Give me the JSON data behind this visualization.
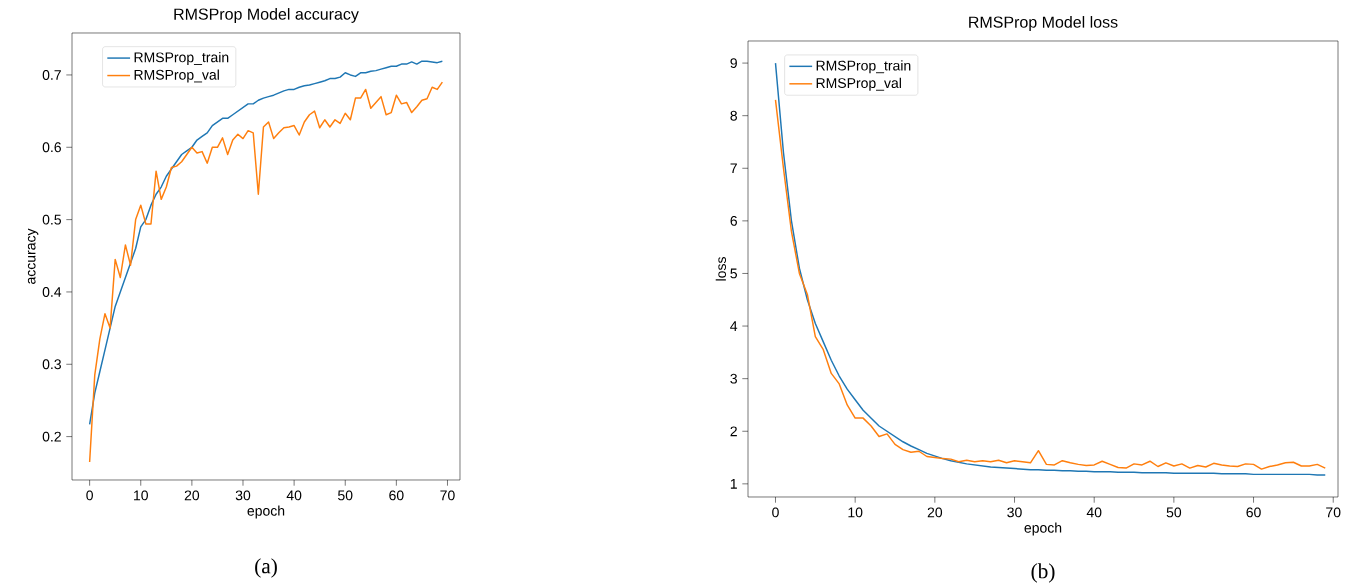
{
  "chart_data": [
    {
      "type": "line",
      "title": "RMSProp Model accuracy",
      "xlabel": "epoch",
      "ylabel": "accuracy",
      "annotations": [
        "(a)"
      ],
      "x": [
        0,
        1,
        2,
        3,
        4,
        5,
        6,
        7,
        8,
        9,
        10,
        11,
        12,
        13,
        14,
        15,
        16,
        17,
        18,
        19,
        20,
        21,
        22,
        23,
        24,
        25,
        26,
        27,
        28,
        29,
        30,
        31,
        32,
        33,
        34,
        35,
        36,
        37,
        38,
        39,
        40,
        41,
        42,
        43,
        44,
        45,
        46,
        47,
        48,
        49,
        50,
        51,
        52,
        53,
        54,
        55,
        56,
        57,
        58,
        59,
        60,
        61,
        62,
        63,
        64,
        65,
        66,
        67,
        68,
        69
      ],
      "xlim": [
        -3.45,
        72.45
      ],
      "ylim": [
        0.14,
        0.758
      ],
      "xticks": [
        0,
        10,
        20,
        30,
        40,
        50,
        60,
        70
      ],
      "yticks": [
        0.2,
        0.3,
        0.4,
        0.5,
        0.6,
        0.7
      ],
      "legend": "top left",
      "grid": false,
      "series": [
        {
          "name": "RMSProp_train",
          "color": "#1f77b4",
          "values": [
            0.217,
            0.26,
            0.29,
            0.32,
            0.35,
            0.38,
            0.4,
            0.42,
            0.44,
            0.46,
            0.49,
            0.5,
            0.52,
            0.535,
            0.545,
            0.56,
            0.57,
            0.58,
            0.59,
            0.595,
            0.6,
            0.61,
            0.615,
            0.62,
            0.63,
            0.635,
            0.64,
            0.64,
            0.645,
            0.65,
            0.655,
            0.66,
            0.66,
            0.665,
            0.668,
            0.67,
            0.672,
            0.675,
            0.678,
            0.68,
            0.68,
            0.683,
            0.685,
            0.686,
            0.688,
            0.69,
            0.692,
            0.695,
            0.695,
            0.697,
            0.703,
            0.7,
            0.698,
            0.703,
            0.703,
            0.705,
            0.706,
            0.708,
            0.71,
            0.712,
            0.712,
            0.715,
            0.715,
            0.718,
            0.715,
            0.719,
            0.719,
            0.718,
            0.717,
            0.719
          ]
        },
        {
          "name": "RMSProp_val",
          "color": "#ff7f0e",
          "values": [
            0.165,
            0.285,
            0.335,
            0.37,
            0.35,
            0.445,
            0.42,
            0.465,
            0.437,
            0.5,
            0.52,
            0.494,
            0.494,
            0.567,
            0.528,
            0.545,
            0.572,
            0.574,
            0.58,
            0.59,
            0.6,
            0.592,
            0.594,
            0.578,
            0.6,
            0.6,
            0.613,
            0.59,
            0.61,
            0.618,
            0.612,
            0.623,
            0.62,
            0.535,
            0.628,
            0.635,
            0.612,
            0.62,
            0.627,
            0.628,
            0.63,
            0.617,
            0.635,
            0.645,
            0.65,
            0.627,
            0.638,
            0.628,
            0.638,
            0.633,
            0.647,
            0.638,
            0.668,
            0.668,
            0.68,
            0.654,
            0.662,
            0.67,
            0.645,
            0.648,
            0.672,
            0.66,
            0.662,
            0.648,
            0.656,
            0.665,
            0.667,
            0.683,
            0.68,
            0.69
          ]
        }
      ]
    },
    {
      "type": "line",
      "title": "RMSProp Model loss",
      "xlabel": "epoch",
      "ylabel": "loss",
      "annotations": [
        "(b)"
      ],
      "x": [
        0,
        1,
        2,
        3,
        4,
        5,
        6,
        7,
        8,
        9,
        10,
        11,
        12,
        13,
        14,
        15,
        16,
        17,
        18,
        19,
        20,
        21,
        22,
        23,
        24,
        25,
        26,
        27,
        28,
        29,
        30,
        31,
        32,
        33,
        34,
        35,
        36,
        37,
        38,
        39,
        40,
        41,
        42,
        43,
        44,
        45,
        46,
        47,
        48,
        49,
        50,
        51,
        52,
        53,
        54,
        55,
        56,
        57,
        58,
        59,
        60,
        61,
        62,
        63,
        64,
        65,
        66,
        67,
        68,
        69
      ],
      "xlim": [
        -3.45,
        70.6
      ],
      "ylim": [
        0.75,
        9.42
      ],
      "xticks": [
        0,
        10,
        20,
        30,
        40,
        50,
        60,
        70
      ],
      "yticks": [
        1,
        2,
        3,
        4,
        5,
        6,
        7,
        8,
        9
      ],
      "legend": "top left",
      "grid": false,
      "series": [
        {
          "name": "RMSProp_train",
          "color": "#1f77b4",
          "values": [
            9.0,
            7.3,
            6.0,
            5.1,
            4.5,
            4.05,
            3.7,
            3.35,
            3.05,
            2.8,
            2.6,
            2.4,
            2.25,
            2.1,
            2.0,
            1.9,
            1.8,
            1.72,
            1.65,
            1.58,
            1.53,
            1.48,
            1.44,
            1.41,
            1.38,
            1.36,
            1.34,
            1.32,
            1.31,
            1.3,
            1.29,
            1.28,
            1.27,
            1.27,
            1.26,
            1.26,
            1.25,
            1.25,
            1.24,
            1.24,
            1.23,
            1.23,
            1.23,
            1.22,
            1.22,
            1.22,
            1.21,
            1.21,
            1.21,
            1.21,
            1.2,
            1.2,
            1.2,
            1.2,
            1.2,
            1.2,
            1.19,
            1.19,
            1.19,
            1.19,
            1.18,
            1.18,
            1.18,
            1.18,
            1.18,
            1.18,
            1.18,
            1.18,
            1.17,
            1.17
          ]
        },
        {
          "name": "RMSProp_val",
          "color": "#ff7f0e",
          "values": [
            8.3,
            7.0,
            5.8,
            5.0,
            4.6,
            3.8,
            3.55,
            3.1,
            2.9,
            2.5,
            2.25,
            2.25,
            2.1,
            1.9,
            1.95,
            1.75,
            1.65,
            1.6,
            1.62,
            1.52,
            1.5,
            1.48,
            1.47,
            1.42,
            1.45,
            1.42,
            1.44,
            1.42,
            1.45,
            1.4,
            1.44,
            1.42,
            1.4,
            1.63,
            1.37,
            1.36,
            1.44,
            1.4,
            1.37,
            1.35,
            1.36,
            1.43,
            1.37,
            1.31,
            1.3,
            1.38,
            1.36,
            1.43,
            1.33,
            1.4,
            1.34,
            1.38,
            1.3,
            1.35,
            1.32,
            1.39,
            1.36,
            1.34,
            1.33,
            1.38,
            1.37,
            1.28,
            1.33,
            1.36,
            1.4,
            1.41,
            1.34,
            1.34,
            1.37,
            1.3
          ]
        }
      ]
    }
  ]
}
